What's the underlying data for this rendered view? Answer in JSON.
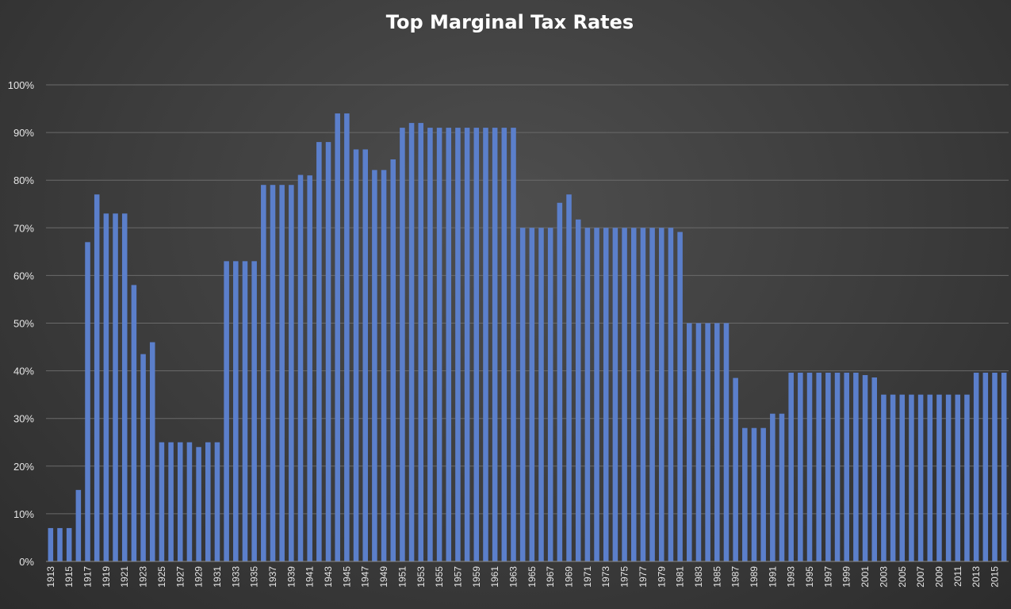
{
  "chart_data": {
    "type": "bar",
    "title": "Top Marginal Tax Rates",
    "xlabel": "",
    "ylabel": "",
    "ylim": [
      0,
      100
    ],
    "y_ticks": [
      "0%",
      "10%",
      "20%",
      "30%",
      "40%",
      "50%",
      "60%",
      "70%",
      "80%",
      "90%",
      "100%"
    ],
    "x_tick_labels": [
      "1913",
      "1915",
      "1917",
      "1919",
      "1921",
      "1923",
      "1925",
      "1927",
      "1929",
      "1931",
      "1933",
      "1935",
      "1937",
      "1939",
      "1941",
      "1943",
      "1945",
      "1947",
      "1949",
      "1951",
      "1953",
      "1955",
      "1957",
      "1959",
      "1961",
      "1963",
      "1965",
      "1967",
      "1969",
      "1971",
      "1973",
      "1975",
      "1977",
      "1979",
      "1981",
      "1983",
      "1985",
      "1987",
      "1989",
      "1991",
      "1993",
      "1995",
      "1997",
      "1999",
      "2001",
      "2003",
      "2005",
      "2007",
      "2009",
      "2011",
      "2013",
      "2015"
    ],
    "grid": true,
    "bar_color": "#5b7fcb",
    "categories": [
      "1913",
      "1914",
      "1915",
      "1916",
      "1917",
      "1918",
      "1919",
      "1920",
      "1921",
      "1922",
      "1923",
      "1924",
      "1925",
      "1926",
      "1927",
      "1928",
      "1929",
      "1930",
      "1931",
      "1932",
      "1933",
      "1934",
      "1935",
      "1936",
      "1937",
      "1938",
      "1939",
      "1940",
      "1941",
      "1942",
      "1943",
      "1944",
      "1945",
      "1946",
      "1947",
      "1948",
      "1949",
      "1950",
      "1951",
      "1952",
      "1953",
      "1954",
      "1955",
      "1956",
      "1957",
      "1958",
      "1959",
      "1960",
      "1961",
      "1962",
      "1963",
      "1964",
      "1965",
      "1966",
      "1967",
      "1968",
      "1969",
      "1970",
      "1971",
      "1972",
      "1973",
      "1974",
      "1975",
      "1976",
      "1977",
      "1978",
      "1979",
      "1980",
      "1981",
      "1982",
      "1983",
      "1984",
      "1985",
      "1986",
      "1987",
      "1988",
      "1989",
      "1990",
      "1991",
      "1992",
      "1993",
      "1994",
      "1995",
      "1996",
      "1997",
      "1998",
      "1999",
      "2000",
      "2001",
      "2002",
      "2003",
      "2004",
      "2005",
      "2006",
      "2007",
      "2008",
      "2009",
      "2010",
      "2011",
      "2012",
      "2013",
      "2014",
      "2015",
      "2016"
    ],
    "values": [
      7,
      7,
      7,
      15,
      67,
      77,
      73,
      73,
      73,
      58,
      43.5,
      46,
      25,
      25,
      25,
      25,
      24,
      25,
      25,
      63,
      63,
      63,
      63,
      79,
      79,
      79,
      79,
      81.1,
      81,
      88,
      88,
      94,
      94,
      86.45,
      86.45,
      82.13,
      82.13,
      84.36,
      91,
      92,
      92,
      91,
      91,
      91,
      91,
      91,
      91,
      91,
      91,
      91,
      91,
      70,
      70,
      70,
      70,
      75.25,
      77,
      71.75,
      70,
      70,
      70,
      70,
      70,
      70,
      70,
      70,
      70,
      70,
      69.13,
      50,
      50,
      50,
      50,
      50,
      38.5,
      28,
      28,
      28,
      31,
      31,
      39.6,
      39.6,
      39.6,
      39.6,
      39.6,
      39.6,
      39.6,
      39.6,
      39.1,
      38.6,
      35,
      35,
      35,
      35,
      35,
      35,
      35,
      35,
      35,
      35,
      39.6,
      39.6,
      39.6,
      39.6
    ]
  }
}
